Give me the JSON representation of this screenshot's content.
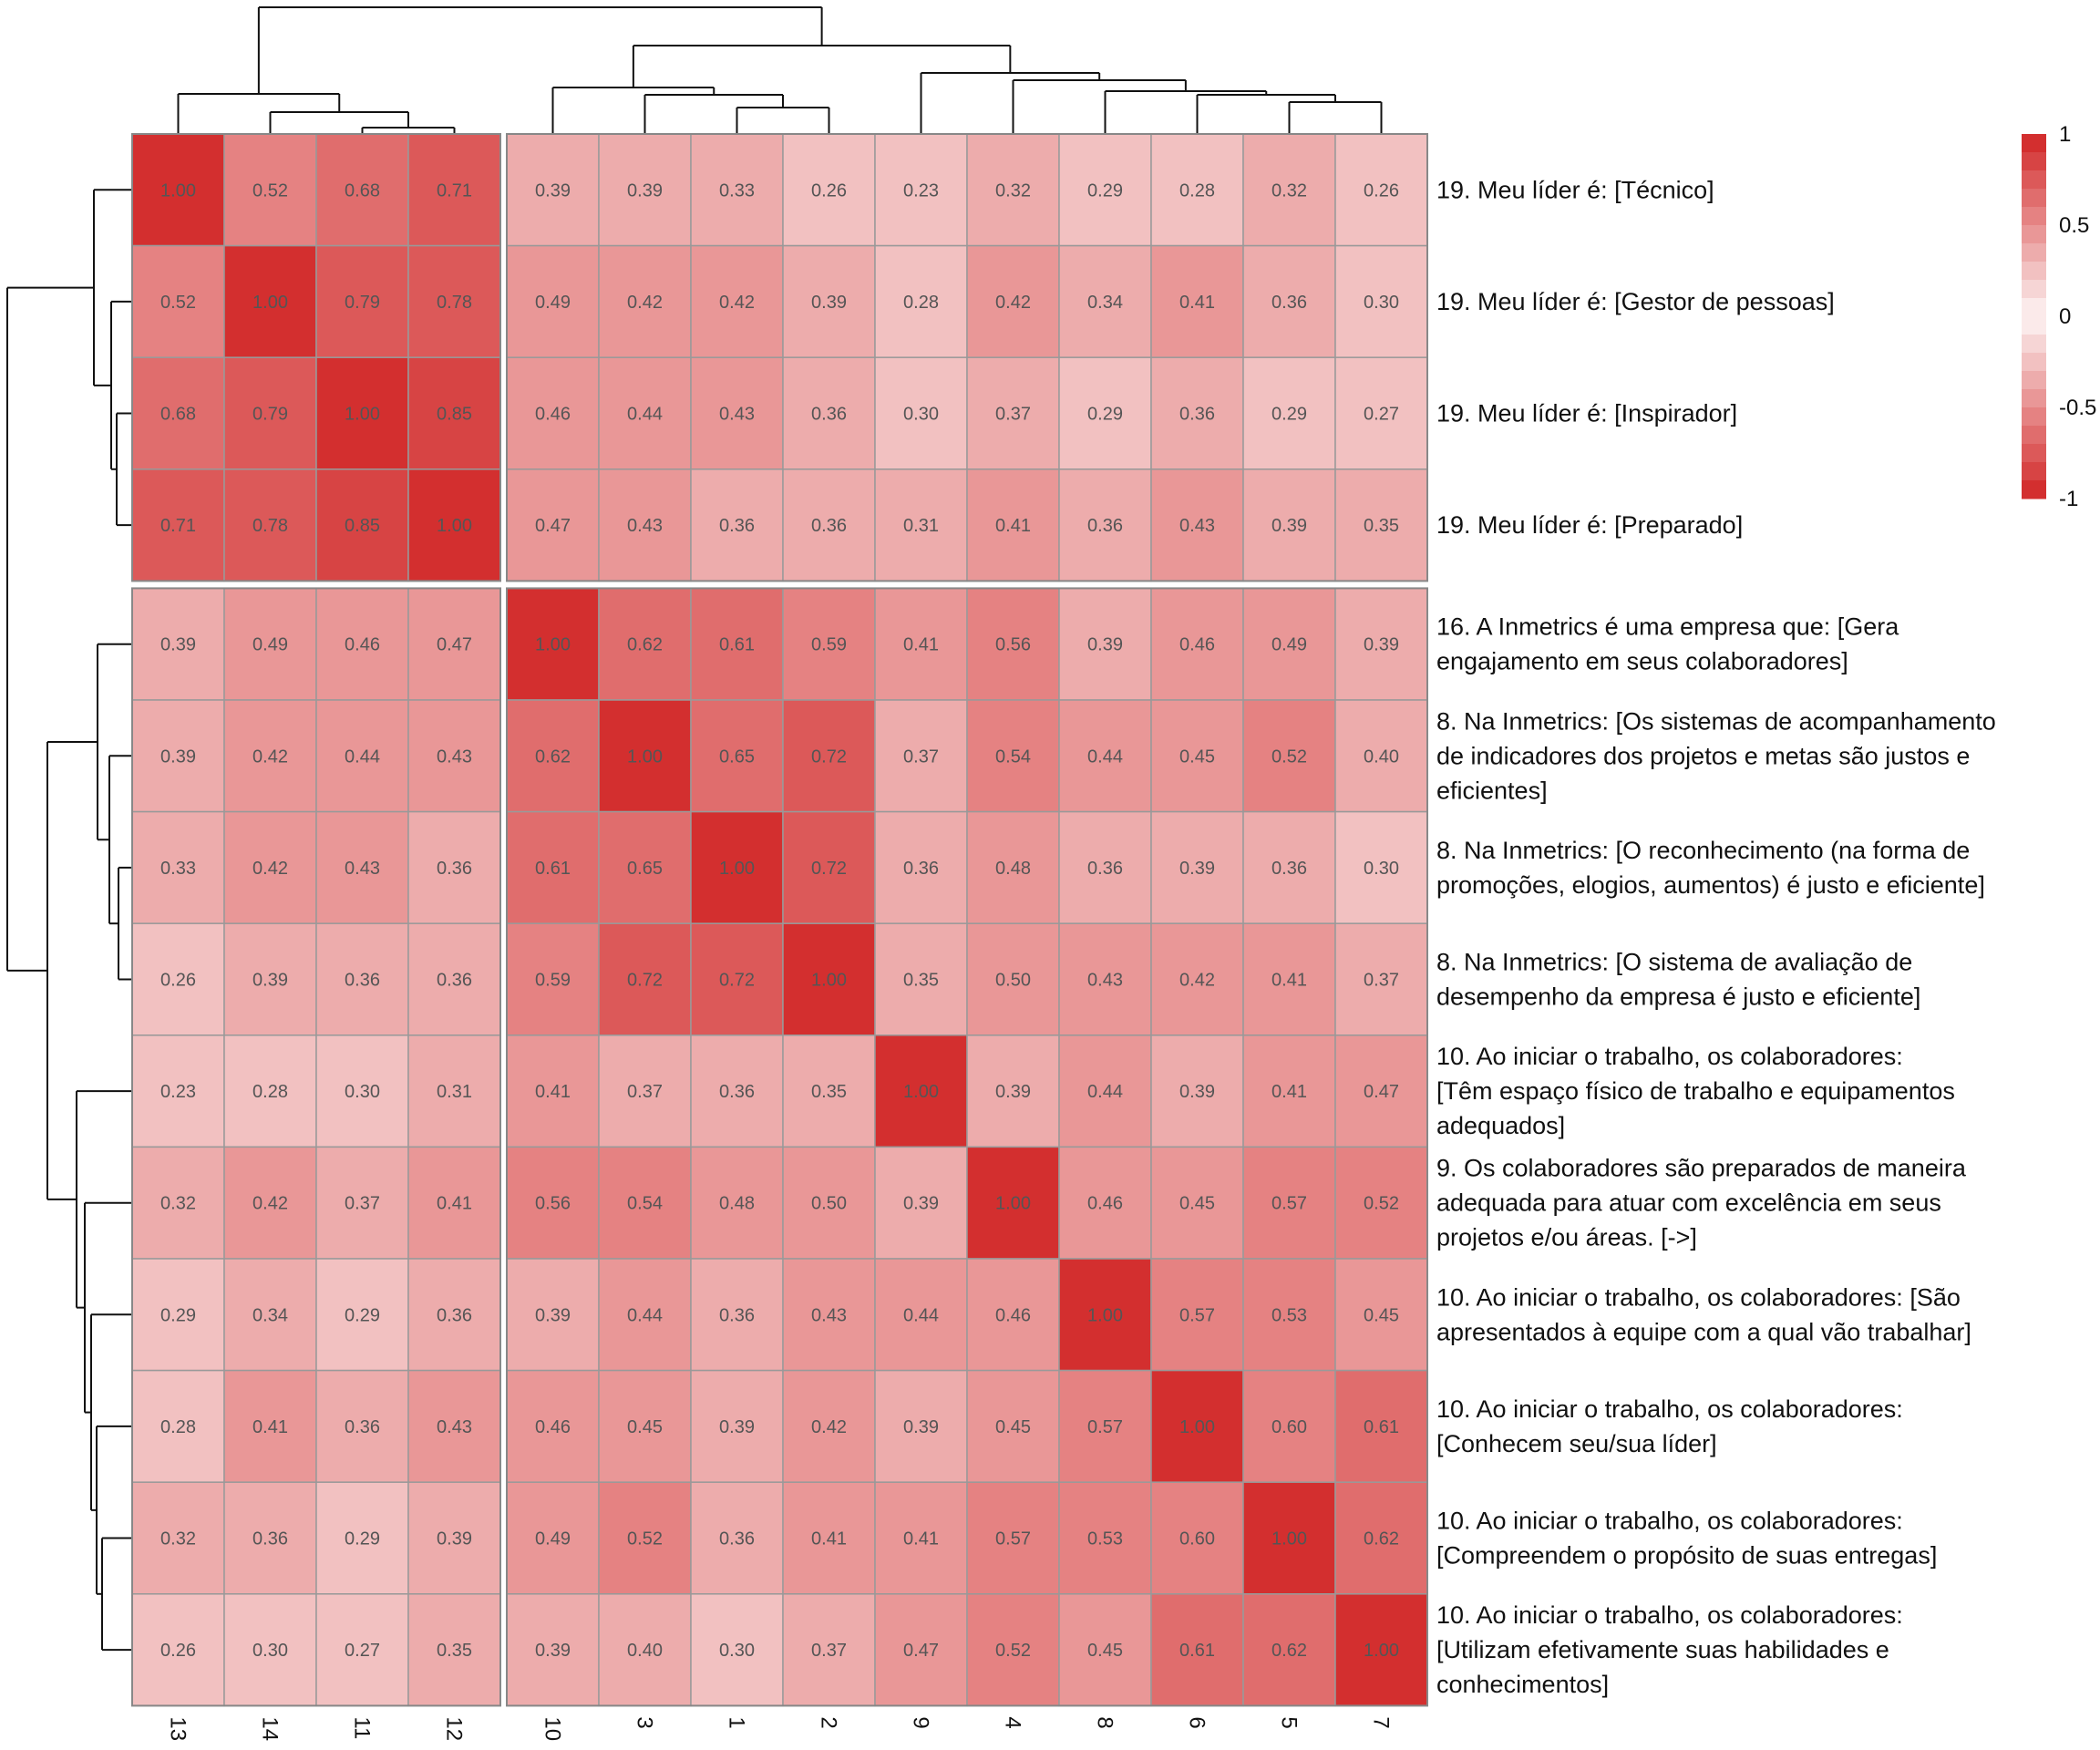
{
  "chart_data": {
    "type": "heatmap",
    "title": "",
    "columns": [
      "13",
      "14",
      "11",
      "12",
      "10",
      "3",
      "1",
      "2",
      "9",
      "4",
      "8",
      "6",
      "5",
      "7"
    ],
    "rows": [
      "19. Meu líder é: [Técnico]",
      "19. Meu líder é: [Gestor de pessoas]",
      "19. Meu líder é: [Inspirador]",
      "19. Meu líder é: [Preparado]",
      "16. A Inmetrics é uma empresa que: [Gera engajamento em seus colaboradores]",
      "8. Na Inmetrics: [Os sistemas de acompanhamento de indicadores dos projetos e metas são justos e eficientes]",
      "8. Na Inmetrics: [O reconhecimento (na forma de promoções, elogios, aumentos) é justo e eficiente]",
      "8. Na Inmetrics: [O sistema de avaliação de desempenho da empresa é justo e eficiente]",
      "10. Ao iniciar o trabalho, os colaboradores: [Têm espaço físico de trabalho e equipamentos adequados]",
      "9. Os colaboradores são preparados de maneira adequada para atuar com excelência em seus projetos e/ou áreas. [->]",
      "10. Ao iniciar o trabalho, os colaboradores: [São apresentados à equipe com a qual vão trabalhar]",
      "10. Ao iniciar o trabalho, os colaboradores: [Conhecem seu/sua líder]",
      "10. Ao iniciar o trabalho, os colaboradores: [Compreendem o propósito de suas entregas]",
      "10. Ao iniciar o trabalho, os colaboradores: [Utilizam efetivamente suas habilidades e conhecimentos]"
    ],
    "row_label_lines": [
      [
        "19. Meu líder é: [Técnico]"
      ],
      [
        "19. Meu líder é: [Gestor de pessoas]"
      ],
      [
        "19. Meu líder é: [Inspirador]"
      ],
      [
        "19. Meu líder é: [Preparado]"
      ],
      [
        "16. A Inmetrics é uma empresa que: [Gera",
        "engajamento em seus colaboradores]"
      ],
      [
        "8. Na Inmetrics: [Os sistemas de acompanhamento",
        "de indicadores dos projetos e metas são justos e",
        "eficientes]"
      ],
      [
        "8. Na Inmetrics: [O reconhecimento (na forma de",
        "promoções, elogios, aumentos) é justo e eficiente]"
      ],
      [
        "8. Na Inmetrics: [O sistema de avaliação de",
        "desempenho da empresa é justo e eficiente]"
      ],
      [
        "10. Ao iniciar o trabalho, os colaboradores:",
        "[Têm espaço físico de trabalho e equipamentos",
        "adequados]"
      ],
      [
        "9. Os colaboradores são preparados de maneira",
        "adequada para atuar com excelência em seus",
        "projetos e/ou áreas. [->]"
      ],
      [
        "10. Ao iniciar o trabalho, os colaboradores: [São",
        "apresentados à equipe com a qual vão trabalhar]"
      ],
      [
        "10. Ao iniciar o trabalho, os colaboradores:",
        "[Conhecem seu/sua líder]"
      ],
      [
        "10. Ao iniciar o trabalho, os colaboradores:",
        "[Compreendem o propósito de suas entregas]"
      ],
      [
        "10. Ao iniciar o trabalho, os colaboradores:",
        "[Utilizam efetivamente suas habilidades e",
        "conhecimentos]"
      ]
    ],
    "values": [
      [
        1.0,
        0.52,
        0.68,
        0.71,
        0.39,
        0.39,
        0.33,
        0.26,
        0.23,
        0.32,
        0.29,
        0.28,
        0.32,
        0.26
      ],
      [
        0.52,
        1.0,
        0.79,
        0.78,
        0.49,
        0.42,
        0.42,
        0.39,
        0.28,
        0.42,
        0.34,
        0.41,
        0.36,
        0.3
      ],
      [
        0.68,
        0.79,
        1.0,
        0.85,
        0.46,
        0.44,
        0.43,
        0.36,
        0.3,
        0.37,
        0.29,
        0.36,
        0.29,
        0.27
      ],
      [
        0.71,
        0.78,
        0.85,
        1.0,
        0.47,
        0.43,
        0.36,
        0.36,
        0.31,
        0.41,
        0.36,
        0.43,
        0.39,
        0.35
      ],
      [
        0.39,
        0.49,
        0.46,
        0.47,
        1.0,
        0.62,
        0.61,
        0.59,
        0.41,
        0.56,
        0.39,
        0.46,
        0.49,
        0.39
      ],
      [
        0.39,
        0.42,
        0.44,
        0.43,
        0.62,
        1.0,
        0.65,
        0.72,
        0.37,
        0.54,
        0.44,
        0.45,
        0.52,
        0.4
      ],
      [
        0.33,
        0.42,
        0.43,
        0.36,
        0.61,
        0.65,
        1.0,
        0.72,
        0.36,
        0.48,
        0.36,
        0.39,
        0.36,
        0.3
      ],
      [
        0.26,
        0.39,
        0.36,
        0.36,
        0.59,
        0.72,
        0.72,
        1.0,
        0.35,
        0.5,
        0.43,
        0.42,
        0.41,
        0.37
      ],
      [
        0.23,
        0.28,
        0.3,
        0.31,
        0.41,
        0.37,
        0.36,
        0.35,
        1.0,
        0.39,
        0.44,
        0.39,
        0.41,
        0.47
      ],
      [
        0.32,
        0.42,
        0.37,
        0.41,
        0.56,
        0.54,
        0.48,
        0.5,
        0.39,
        1.0,
        0.46,
        0.45,
        0.57,
        0.52
      ],
      [
        0.29,
        0.34,
        0.29,
        0.36,
        0.39,
        0.44,
        0.36,
        0.43,
        0.44,
        0.46,
        1.0,
        0.57,
        0.53,
        0.45
      ],
      [
        0.28,
        0.41,
        0.36,
        0.43,
        0.46,
        0.45,
        0.39,
        0.42,
        0.39,
        0.45,
        0.57,
        1.0,
        0.6,
        0.61
      ],
      [
        0.32,
        0.36,
        0.29,
        0.39,
        0.49,
        0.52,
        0.36,
        0.41,
        0.41,
        0.57,
        0.53,
        0.6,
        1.0,
        0.62
      ],
      [
        0.26,
        0.3,
        0.27,
        0.35,
        0.39,
        0.4,
        0.3,
        0.37,
        0.47,
        0.52,
        0.45,
        0.61,
        0.62,
        1.0
      ]
    ],
    "row_groups": [
      4,
      10
    ],
    "col_groups": [
      4,
      10
    ],
    "color_scale": {
      "min": -1,
      "max": 1,
      "low_color": "#d32f2f",
      "mid_color": "#ffffff",
      "high_color": "#d32f2f",
      "ticks": [
        "1",
        "0.5",
        "0",
        "-0.5",
        "-1"
      ],
      "tick_values": [
        1,
        0.5,
        0,
        -0.5,
        -1
      ]
    },
    "cell_border_color": "#999999",
    "cell_text_color": "#555555",
    "dendrograms": true,
    "legend": "right"
  }
}
